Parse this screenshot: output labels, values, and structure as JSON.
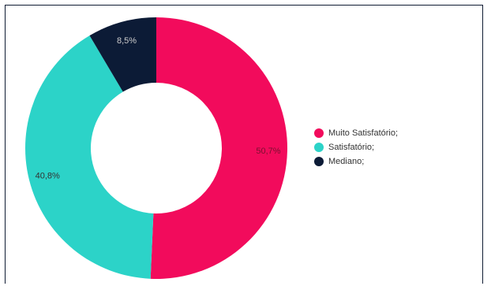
{
  "chart_data": {
    "type": "pie",
    "donut": true,
    "categories": [
      "Muito Satisfatório;",
      "Satisfatório;",
      "Mediano;"
    ],
    "values": [
      50.7,
      40.8,
      8.5
    ],
    "data_labels": [
      "50,7%",
      "40,8%",
      "8,5%"
    ],
    "colors": [
      "#f20b5c",
      "#2cd3c8",
      "#0c1b36"
    ],
    "legend_position": "right"
  }
}
